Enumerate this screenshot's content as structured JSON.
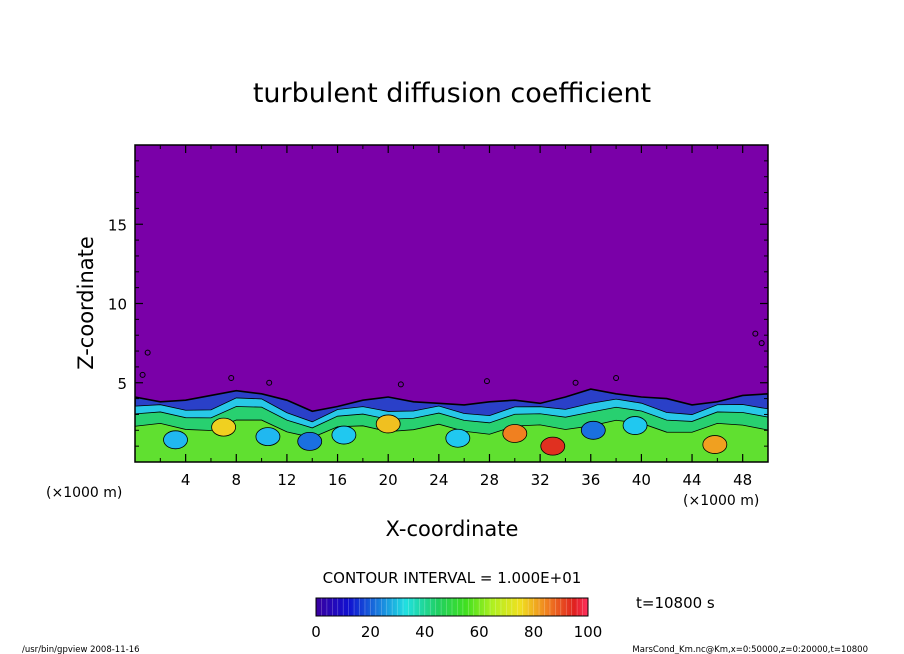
{
  "chart_data": {
    "type": "heatmap",
    "title": "turbulent diffusion coefficient",
    "xlabel": "X-coordinate",
    "ylabel": "Z-coordinate",
    "x_unit": "(×1000 m)",
    "x_unit_right": "(×1000 m)",
    "xlim": [
      0,
      50
    ],
    "ylim": [
      0,
      20
    ],
    "x_ticks": [
      4,
      8,
      12,
      16,
      20,
      24,
      28,
      32,
      36,
      40,
      44,
      48
    ],
    "y_ticks": [
      5,
      10,
      15
    ],
    "contour_interval_label": "CONTOUR INTERVAL = 1.000E+01",
    "time_label": "t=10800 s",
    "colorbar": {
      "min": 0,
      "max": 100,
      "ticks": [
        0,
        20,
        40,
        60,
        80,
        100
      ]
    },
    "background_color": "#7a00a8",
    "boundary_layer_top_profile": {
      "x": [
        0,
        2,
        4,
        6,
        8,
        10,
        12,
        14,
        16,
        18,
        20,
        22,
        24,
        26,
        28,
        30,
        32,
        34,
        36,
        38,
        40,
        42,
        44,
        46,
        48,
        50
      ],
      "z": [
        4.1,
        3.8,
        3.9,
        4.2,
        4.5,
        4.3,
        3.9,
        3.2,
        3.5,
        3.9,
        4.1,
        3.8,
        3.7,
        3.6,
        3.8,
        3.9,
        3.7,
        4.1,
        4.6,
        4.3,
        4.1,
        4.0,
        3.6,
        3.8,
        4.2,
        4.3
      ]
    }
  },
  "footer": {
    "left": "/usr/bin/gpview   2008-11-16",
    "right": "MarsCond_Km.nc@Km,x=0:50000,z=0:20000,t=10800"
  }
}
